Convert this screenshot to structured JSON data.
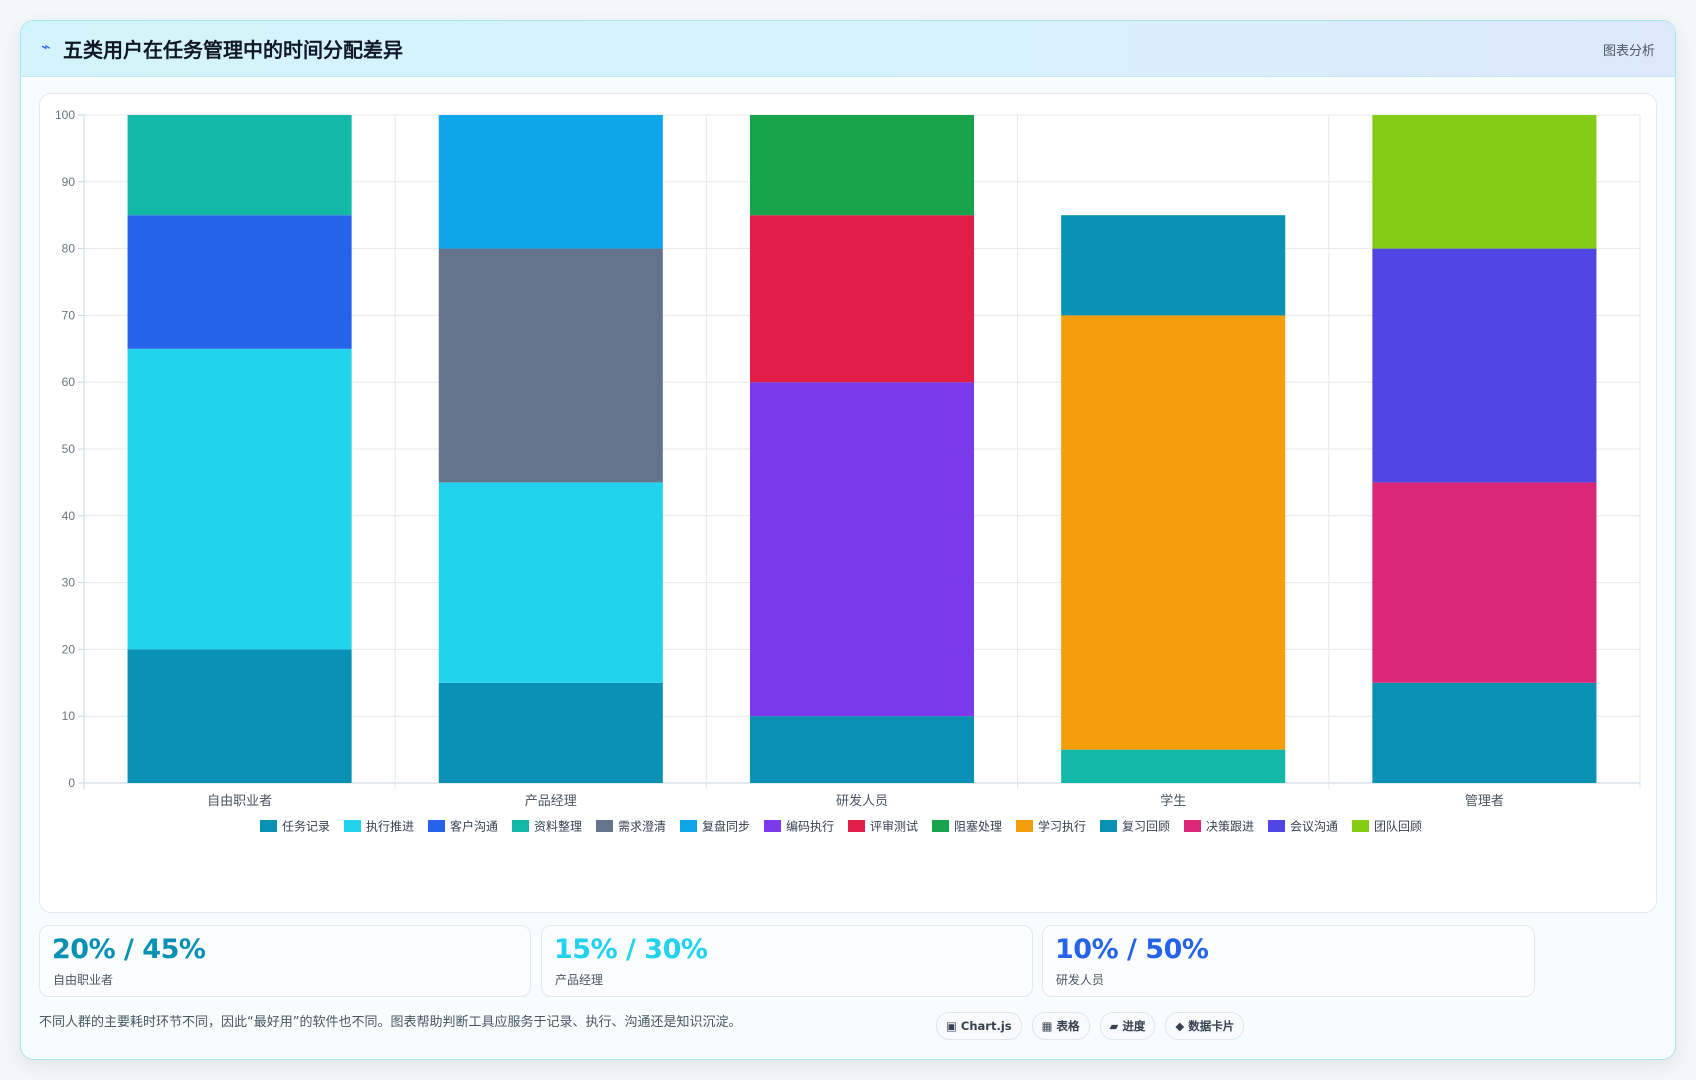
{
  "header": {
    "icon": "bolt-icon",
    "title": "五类用户在任务管理中的时间分配差异",
    "tag": "图表分析"
  },
  "chart_data": {
    "type": "bar",
    "stacked": true,
    "categories": [
      "自由职业者",
      "产品经理",
      "研发人员",
      "学生",
      "管理者"
    ],
    "ylim": [
      0,
      100
    ],
    "yticks": [
      0,
      10,
      20,
      30,
      40,
      50,
      60,
      70,
      80,
      90,
      100
    ],
    "grid": true,
    "legend_position": "bottom",
    "series": [
      {
        "name": "任务记录",
        "color": "#0891b2",
        "values": [
          20,
          15,
          10,
          0,
          0
        ]
      },
      {
        "name": "执行推进",
        "color": "#22d3ee",
        "values": [
          45,
          30,
          0,
          0,
          0
        ]
      },
      {
        "name": "客户沟通",
        "color": "#2563eb",
        "values": [
          20,
          0,
          0,
          0,
          0
        ]
      },
      {
        "name": "资料整理",
        "color": "#14b8a6",
        "values": [
          15,
          0,
          0,
          5,
          0
        ]
      },
      {
        "name": "需求澄清",
        "color": "#64748b",
        "values": [
          0,
          35,
          0,
          0,
          0
        ]
      },
      {
        "name": "复盘同步",
        "color": "#0ea5e9",
        "values": [
          0,
          20,
          0,
          0,
          0
        ]
      },
      {
        "name": "编码执行",
        "color": "#7c3aed",
        "values": [
          0,
          0,
          50,
          0,
          0
        ]
      },
      {
        "name": "评审测试",
        "color": "#e11d48",
        "values": [
          0,
          0,
          25,
          0,
          0
        ]
      },
      {
        "name": "阻塞处理",
        "color": "#16a34a",
        "values": [
          0,
          0,
          15,
          0,
          0
        ]
      },
      {
        "name": "学习执行",
        "color": "#f59e0b",
        "values": [
          0,
          0,
          0,
          65,
          0
        ]
      },
      {
        "name": "复习回顾",
        "color": "#0891b2",
        "values": [
          0,
          0,
          0,
          15,
          15
        ]
      },
      {
        "name": "决策跟进",
        "color": "#db2777",
        "values": [
          0,
          0,
          0,
          0,
          30
        ]
      },
      {
        "name": "会议沟通",
        "color": "#4f46e5",
        "values": [
          0,
          0,
          0,
          0,
          35
        ]
      },
      {
        "name": "团队回顾",
        "color": "#84cc16",
        "values": [
          0,
          0,
          0,
          0,
          20
        ]
      }
    ]
  },
  "stats": [
    {
      "value": "20% / 45%",
      "label": "自由职业者",
      "color": "#0891b2"
    },
    {
      "value": "15% / 30%",
      "label": "产品经理",
      "color": "#22d3ee"
    },
    {
      "value": "10% / 50%",
      "label": "研发人员",
      "color": "#2563eb"
    }
  ],
  "footer": {
    "note": "不同人群的主要耗时环节不同，因此“最好用”的软件也不同。图表帮助判断工具应服务于记录、执行、沟通还是知识沉淀。",
    "chips": [
      {
        "icon": "chart-square-icon",
        "glyph": "▣",
        "label": "Chart.js"
      },
      {
        "icon": "table-grid-icon",
        "glyph": "▦",
        "label": "表格"
      },
      {
        "icon": "progress-icon",
        "glyph": "▰",
        "label": "进度"
      },
      {
        "icon": "data-card-icon",
        "glyph": "◆",
        "label": "数据卡片"
      }
    ]
  }
}
